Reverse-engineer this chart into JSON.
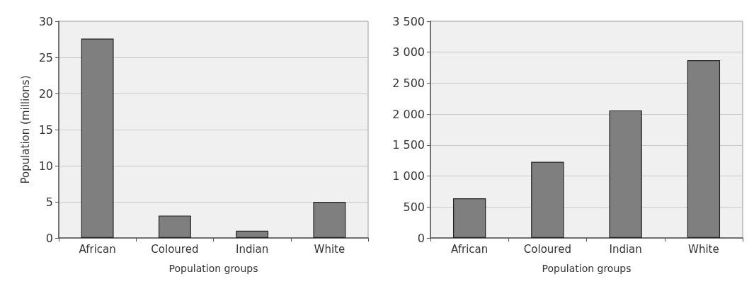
{
  "chart_data": [
    {
      "type": "bar",
      "xlabel": "Population groups",
      "ylabel": "Population (millions)",
      "categories": [
        "African",
        "Coloured",
        "Indian",
        "White"
      ],
      "values": [
        27.6,
        3.1,
        1.0,
        5.0
      ],
      "color": "#7f7f7f",
      "ylim": [
        0,
        30
      ],
      "yticks": [
        0,
        5,
        10,
        15,
        20,
        25,
        30
      ],
      "grid": "y"
    },
    {
      "type": "bar",
      "xlabel": "Population groups",
      "categories": [
        "African",
        "Coloured",
        "Indian",
        "White"
      ],
      "values": [
        640,
        1230,
        2060,
        2870
      ],
      "color": "#7f7f7f",
      "ylim": [
        0,
        3500
      ],
      "yticks": [
        0,
        500,
        {
          "value": 1000,
          "label": "1 000"
        },
        {
          "value": 1500,
          "label": "1 500"
        },
        {
          "value": 2000,
          "label": "2 000"
        },
        {
          "value": 2500,
          "label": "2 500"
        },
        {
          "value": 3000,
          "label": "3 000"
        },
        {
          "value": 3500,
          "label": "3 500"
        }
      ],
      "grid": "y"
    }
  ]
}
